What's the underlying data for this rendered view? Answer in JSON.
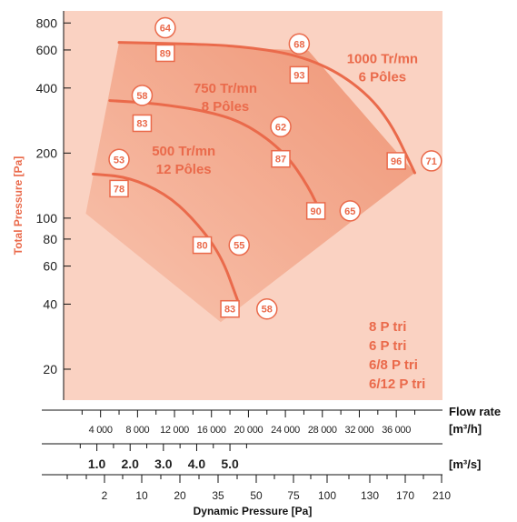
{
  "colors": {
    "background_panel": "#fce3d8",
    "plot_area": "#fad2c2",
    "envelope_light": "#f8c2ac",
    "envelope_dark": "#ee8f6e",
    "curve": "#ea6a4b",
    "accent_text": "#ea6a4b",
    "axis": "#111111"
  },
  "chart_data": {
    "type": "line",
    "ylabel": "Total Pressure [Pa]",
    "yscale": "log",
    "ylim": [
      16,
      850
    ],
    "y_ticks": [
      800,
      600,
      400,
      200,
      100,
      80,
      60,
      40,
      20
    ],
    "x_axes": [
      {
        "label": "Flow rate",
        "unit": "[m³/h]",
        "range": [
          0,
          41000
        ],
        "ticks": [
          4000,
          8000,
          12000,
          16000,
          20000,
          24000,
          28000,
          32000,
          36000
        ],
        "tick_labels": [
          "4 000",
          "8 000",
          "12 000",
          "16 000",
          "20 000",
          "24 000",
          "28 000",
          "32 000",
          "36 000"
        ]
      },
      {
        "label": "",
        "unit": "[m³/s]",
        "range": [
          0,
          11.4
        ],
        "ticks": [
          1,
          2,
          3,
          4,
          5
        ],
        "tick_labels": [
          "1.0",
          "2.0",
          "3.0",
          "4.0",
          "5.0"
        ]
      },
      {
        "label": "Dynamic Pressure [Pa]",
        "unit": "",
        "ticks": [
          2,
          10,
          20,
          35,
          50,
          75,
          100,
          130,
          170,
          210
        ],
        "tick_labels": [
          "2",
          "10",
          "20",
          "35",
          "50",
          "75",
          "100",
          "130",
          "170",
          "210"
        ]
      }
    ],
    "envelope_label_vertices": [
      [
        2400,
        105
      ],
      [
        6000,
        650
      ],
      [
        26500,
        595
      ],
      [
        38000,
        162
      ],
      [
        17000,
        33
      ]
    ],
    "series": [
      {
        "name": "1000 Tr/mn 6 Pôles",
        "x": [
          6000,
          14000,
          20000,
          26000,
          31000,
          35000,
          38000
        ],
        "y": [
          650,
          640,
          620,
          560,
          440,
          300,
          162
        ]
      },
      {
        "name": "750 Tr/mn 8 Pôles",
        "x": [
          5000,
          10000,
          16000,
          20000,
          24000,
          26500,
          28000
        ],
        "y": [
          350,
          340,
          310,
          270,
          200,
          140,
          102
        ]
      },
      {
        "name": "500 Tr/mn 12 Pôles",
        "x": [
          3200,
          7000,
          11000,
          14000,
          17000,
          18800
        ],
        "y": [
          160,
          155,
          130,
          100,
          68,
          42
        ]
      }
    ],
    "annotations_circle": [
      {
        "text": "64",
        "x": 11000,
        "y": 760
      },
      {
        "text": "68",
        "x": 25500,
        "y": 640
      },
      {
        "text": "58",
        "x": 8500,
        "y": 370
      },
      {
        "text": "62",
        "x": 23500,
        "y": 265
      },
      {
        "text": "53",
        "x": 6000,
        "y": 187
      },
      {
        "text": "71",
        "x": 39800,
        "y": 184
      },
      {
        "text": "65",
        "x": 31000,
        "y": 108
      },
      {
        "text": "55",
        "x": 19000,
        "y": 75
      },
      {
        "text": "58",
        "x": 22000,
        "y": 38
      }
    ],
    "annotations_square": [
      {
        "text": "89",
        "x": 11000,
        "y": 580
      },
      {
        "text": "93",
        "x": 25500,
        "y": 460
      },
      {
        "text": "83",
        "x": 8500,
        "y": 275
      },
      {
        "text": "87",
        "x": 23500,
        "y": 188
      },
      {
        "text": "78",
        "x": 6000,
        "y": 137
      },
      {
        "text": "96",
        "x": 36000,
        "y": 184
      },
      {
        "text": "90",
        "x": 27300,
        "y": 108
      },
      {
        "text": "80",
        "x": 15000,
        "y": 75
      },
      {
        "text": "83",
        "x": 18000,
        "y": 38
      }
    ],
    "speed_labels": [
      {
        "lines": [
          "1000 Tr/mn",
          "6 Pôles"
        ],
        "x": 34500,
        "y": 520
      },
      {
        "lines": [
          "750 Tr/mn",
          "8 Pôles"
        ],
        "x": 17500,
        "y": 380
      },
      {
        "lines": [
          "500 Tr/mn",
          "12 Pôles"
        ],
        "x": 13000,
        "y": 195
      }
    ],
    "legend_text": [
      "8 P tri",
      "6 P tri",
      "6/8 P tri",
      "6/12 P tri"
    ]
  }
}
